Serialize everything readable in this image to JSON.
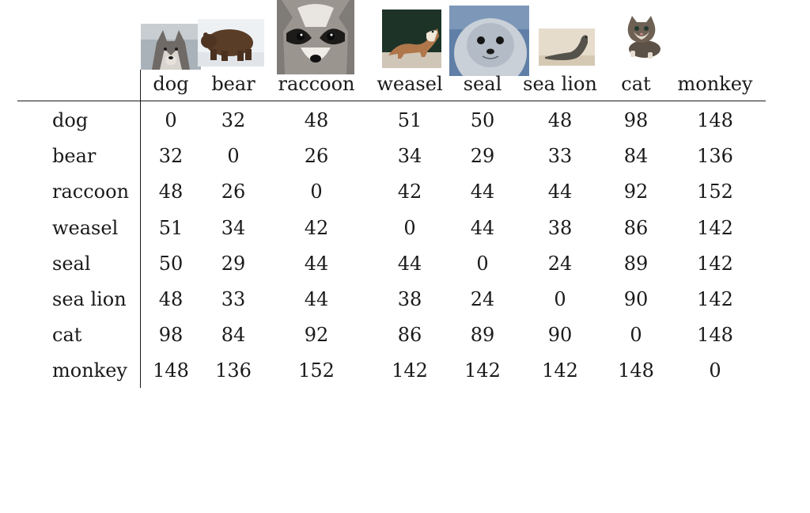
{
  "table": {
    "columns": [
      "dog",
      "bear",
      "raccoon",
      "weasel",
      "seal",
      "sea lion",
      "cat",
      "monkey"
    ],
    "rows": [
      {
        "label": "dog",
        "values": [
          "0",
          "32",
          "48",
          "51",
          "50",
          "48",
          "98",
          "148"
        ]
      },
      {
        "label": "bear",
        "values": [
          "32",
          "0",
          "26",
          "34",
          "29",
          "33",
          "84",
          "136"
        ]
      },
      {
        "label": "raccoon",
        "values": [
          "48",
          "26",
          "0",
          "42",
          "44",
          "44",
          "92",
          "152"
        ]
      },
      {
        "label": "weasel",
        "values": [
          "51",
          "34",
          "42",
          "0",
          "44",
          "38",
          "86",
          "142"
        ]
      },
      {
        "label": "seal",
        "values": [
          "50",
          "29",
          "44",
          "44",
          "0",
          "24",
          "89",
          "142"
        ]
      },
      {
        "label": "sea lion",
        "values": [
          "48",
          "33",
          "44",
          "38",
          "24",
          "0",
          "90",
          "142"
        ]
      },
      {
        "label": "cat",
        "values": [
          "98",
          "84",
          "92",
          "86",
          "89",
          "90",
          "0",
          "148"
        ]
      },
      {
        "label": "monkey",
        "values": [
          "148",
          "136",
          "152",
          "142",
          "142",
          "142",
          "148",
          "0"
        ]
      }
    ]
  },
  "photos": [
    "wolf-photo",
    "bear-photo",
    "raccoon-photo",
    "weasel-photo",
    "seal-photo",
    "sea-lion-photo",
    "kitten-photo"
  ]
}
